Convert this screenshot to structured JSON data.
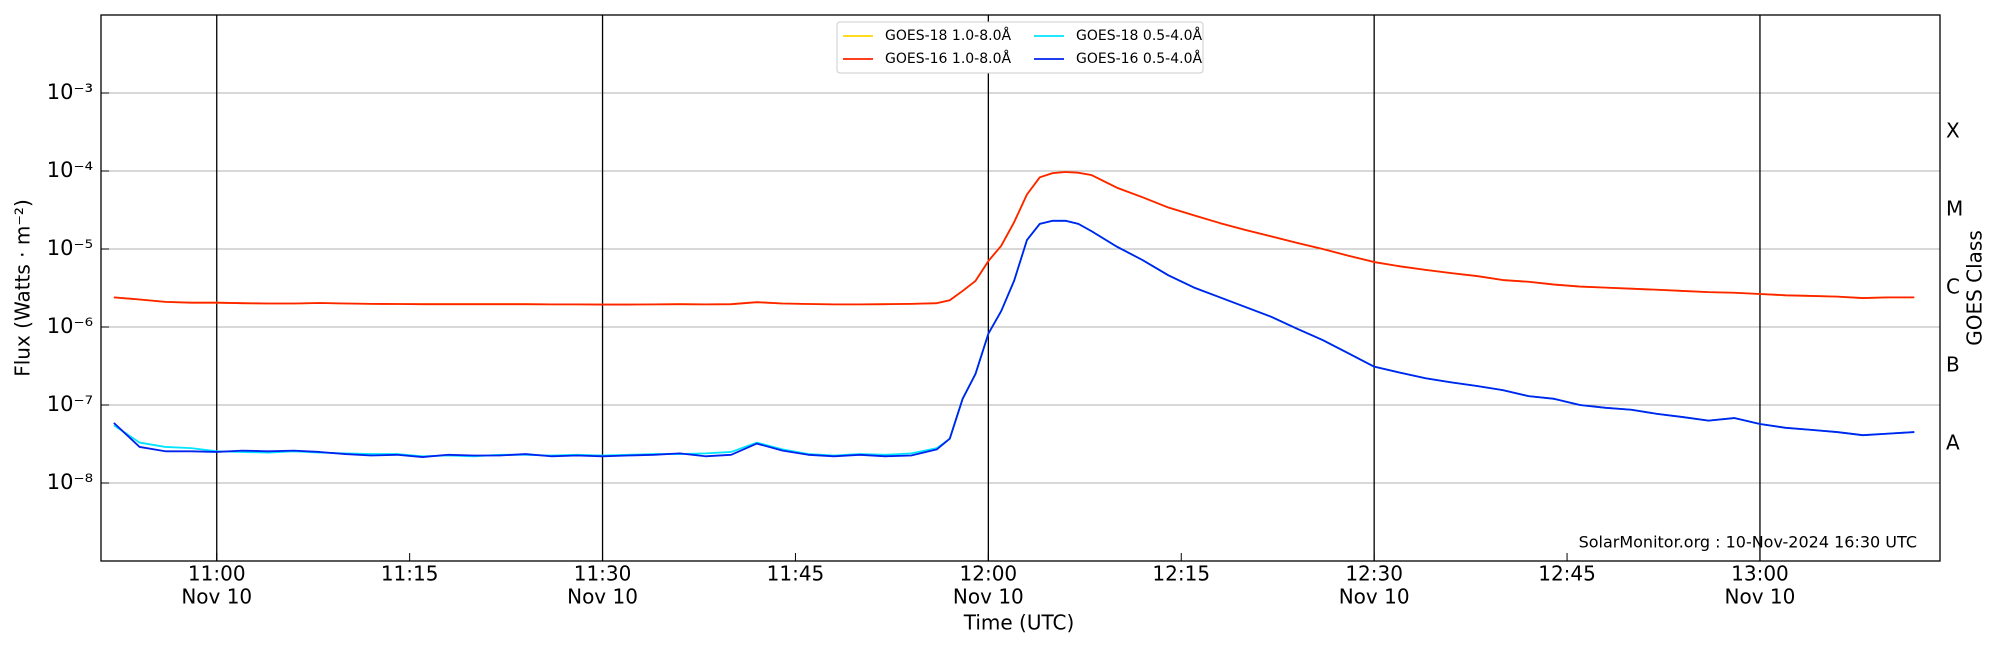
{
  "chart_data": {
    "type": "line",
    "y_label": "Flux (Watts · m⁻²)",
    "x_label": "Time (UTC)",
    "y2_label": "GOES Class",
    "annotation": "SolarMonitor.org : 10-Nov-2024 16:30 UTC",
    "log_y": true,
    "grid": true,
    "legend": "upper center",
    "x": [
      "10:52",
      "10:54",
      "10:56",
      "10:58",
      "11:00",
      "11:02",
      "11:04",
      "11:06",
      "11:08",
      "11:10",
      "11:12",
      "11:14",
      "11:16",
      "11:18",
      "11:20",
      "11:22",
      "11:24",
      "11:26",
      "11:28",
      "11:30",
      "11:32",
      "11:34",
      "11:36",
      "11:38",
      "11:40",
      "11:42",
      "11:44",
      "11:46",
      "11:48",
      "11:50",
      "11:52",
      "11:54",
      "11:56",
      "11:57",
      "11:58",
      "11:59",
      "12:00",
      "12:01",
      "12:02",
      "12:03",
      "12:04",
      "12:05",
      "12:06",
      "12:07",
      "12:08",
      "12:10",
      "12:12",
      "12:14",
      "12:16",
      "12:18",
      "12:20",
      "12:22",
      "12:24",
      "12:26",
      "12:28",
      "12:30",
      "12:32",
      "12:34",
      "12:36",
      "12:38",
      "12:40",
      "12:42",
      "12:44",
      "12:46",
      "12:48",
      "12:50",
      "12:52",
      "12:54",
      "12:56",
      "12:58",
      "13:00",
      "13:02",
      "13:04",
      "13:06",
      "13:08",
      "13:10",
      "13:12"
    ],
    "series": [
      {
        "name": "GOES-18 1.0-8.0Å",
        "color": "#ffd700",
        "values": [
          2.4e-06,
          2.25e-06,
          2.1e-06,
          2.05e-06,
          2.05e-06,
          2.02e-06,
          2e-06,
          2e-06,
          2.03e-06,
          2e-06,
          1.98e-06,
          1.97e-06,
          1.96e-06,
          1.96e-06,
          1.96e-06,
          1.96e-06,
          1.96e-06,
          1.95e-06,
          1.95e-06,
          1.94e-06,
          1.94e-06,
          1.95e-06,
          1.96e-06,
          1.95e-06,
          1.96e-06,
          2.08e-06,
          2e-06,
          1.97e-06,
          1.95e-06,
          1.95e-06,
          1.96e-06,
          1.98e-06,
          2.02e-06,
          2.2e-06,
          2.9e-06,
          3.9e-06,
          7e-06,
          1.1e-05,
          2.2e-05,
          5e-05,
          8.3e-05,
          9.4e-05,
          9.7e-05,
          9.5e-05,
          8.9e-05,
          6.1e-05,
          4.6e-05,
          3.4e-05,
          2.7e-05,
          2.15e-05,
          1.75e-05,
          1.45e-05,
          1.2e-05,
          1e-05,
          8.2e-06,
          6.8e-06,
          6e-06,
          5.4e-06,
          4.9e-06,
          4.5e-06,
          4e-06,
          3.8e-06,
          3.5e-06,
          3.3e-06,
          3.2e-06,
          3.1e-06,
          3e-06,
          2.9e-06,
          2.8e-06,
          2.75e-06,
          2.65e-06,
          2.55e-06,
          2.5e-06,
          2.45e-06,
          2.35e-06,
          2.4e-06,
          2.4e-06
        ]
      },
      {
        "name": "GOES-16 1.0-8.0Å",
        "color": "#ff2200",
        "values": [
          2.4e-06,
          2.25e-06,
          2.1e-06,
          2.05e-06,
          2.05e-06,
          2.02e-06,
          2e-06,
          2e-06,
          2.03e-06,
          2e-06,
          1.98e-06,
          1.97e-06,
          1.96e-06,
          1.96e-06,
          1.96e-06,
          1.96e-06,
          1.96e-06,
          1.95e-06,
          1.95e-06,
          1.94e-06,
          1.94e-06,
          1.95e-06,
          1.96e-06,
          1.95e-06,
          1.96e-06,
          2.08e-06,
          2e-06,
          1.97e-06,
          1.95e-06,
          1.95e-06,
          1.96e-06,
          1.98e-06,
          2.02e-06,
          2.2e-06,
          2.9e-06,
          3.9e-06,
          7e-06,
          1.1e-05,
          2.2e-05,
          5e-05,
          8.3e-05,
          9.4e-05,
          9.7e-05,
          9.5e-05,
          8.9e-05,
          6.1e-05,
          4.6e-05,
          3.4e-05,
          2.7e-05,
          2.15e-05,
          1.75e-05,
          1.45e-05,
          1.2e-05,
          1e-05,
          8.2e-06,
          6.8e-06,
          6e-06,
          5.4e-06,
          4.9e-06,
          4.5e-06,
          4e-06,
          3.8e-06,
          3.5e-06,
          3.3e-06,
          3.2e-06,
          3.1e-06,
          3e-06,
          2.9e-06,
          2.8e-06,
          2.75e-06,
          2.65e-06,
          2.55e-06,
          2.5e-06,
          2.45e-06,
          2.35e-06,
          2.4e-06,
          2.4e-06
        ]
      },
      {
        "name": "GOES-18 0.5-4.0Å",
        "color": "#00e5ff",
        "values": [
          5.5e-08,
          3.3e-08,
          2.9e-08,
          2.8e-08,
          2.55e-08,
          2.5e-08,
          2.45e-08,
          2.55e-08,
          2.45e-08,
          2.4e-08,
          2.35e-08,
          2.35e-08,
          2.2e-08,
          2.25e-08,
          2.2e-08,
          2.3e-08,
          2.3e-08,
          2.25e-08,
          2.3e-08,
          2.25e-08,
          2.3e-08,
          2.35e-08,
          2.35e-08,
          2.4e-08,
          2.5e-08,
          3.3e-08,
          2.7e-08,
          2.35e-08,
          2.25e-08,
          2.35e-08,
          2.3e-08,
          2.4e-08,
          2.8e-08,
          3.7e-08,
          1.2e-07,
          2.5e-07,
          8.2e-07,
          1.6e-06,
          3.9e-06,
          1.3e-05,
          2.1e-05,
          2.3e-05,
          2.3e-05,
          2.1e-05,
          1.7e-05,
          1.07e-05,
          7.2e-06,
          4.6e-06,
          3.2e-06,
          2.4e-06,
          1.8e-06,
          1.35e-06,
          9.5e-07,
          6.8e-07,
          4.6e-07,
          3.1e-07,
          2.6e-07,
          2.2e-07,
          1.95e-07,
          1.75e-07,
          1.55e-07,
          1.3e-07,
          1.2e-07,
          1e-07,
          9.2e-08,
          8.7e-08,
          7.7e-08,
          7e-08,
          6.3e-08,
          6.8e-08,
          5.7e-08,
          5.1e-08,
          4.8e-08,
          4.5e-08,
          4.1e-08,
          4.3e-08,
          4.5e-08
        ]
      },
      {
        "name": "GOES-16 0.5-4.0Å",
        "color": "#0022ee",
        "values": [
          5.9e-08,
          2.9e-08,
          2.55e-08,
          2.55e-08,
          2.5e-08,
          2.6e-08,
          2.55e-08,
          2.6e-08,
          2.5e-08,
          2.35e-08,
          2.25e-08,
          2.3e-08,
          2.15e-08,
          2.3e-08,
          2.25e-08,
          2.25e-08,
          2.35e-08,
          2.2e-08,
          2.25e-08,
          2.2e-08,
          2.25e-08,
          2.3e-08,
          2.4e-08,
          2.2e-08,
          2.3e-08,
          3.2e-08,
          2.6e-08,
          2.3e-08,
          2.2e-08,
          2.3e-08,
          2.2e-08,
          2.25e-08,
          2.7e-08,
          3.7e-08,
          1.2e-07,
          2.5e-07,
          8.2e-07,
          1.6e-06,
          3.9e-06,
          1.3e-05,
          2.1e-05,
          2.3e-05,
          2.3e-05,
          2.1e-05,
          1.7e-05,
          1.07e-05,
          7.2e-06,
          4.6e-06,
          3.2e-06,
          2.4e-06,
          1.8e-06,
          1.35e-06,
          9.5e-07,
          6.8e-07,
          4.6e-07,
          3.1e-07,
          2.6e-07,
          2.2e-07,
          1.95e-07,
          1.75e-07,
          1.55e-07,
          1.3e-07,
          1.2e-07,
          1e-07,
          9.2e-08,
          8.7e-08,
          7.7e-08,
          7e-08,
          6.3e-08,
          6.8e-08,
          5.7e-08,
          5.1e-08,
          4.8e-08,
          4.5e-08,
          4.1e-08,
          4.3e-08,
          4.5e-08
        ]
      }
    ],
    "xlim": [
      "10:51",
      "13:14"
    ],
    "xticks": [
      {
        "value": "11:00",
        "label": "11:00",
        "sublabel": "Nov 10"
      },
      {
        "value": "11:15",
        "label": "11:15"
      },
      {
        "value": "11:30",
        "label": "11:30",
        "sublabel": "Nov 10"
      },
      {
        "value": "11:45",
        "label": "11:45"
      },
      {
        "value": "12:00",
        "label": "12:00",
        "sublabel": "Nov 10"
      },
      {
        "value": "12:15",
        "label": "12:15"
      },
      {
        "value": "12:30",
        "label": "12:30",
        "sublabel": "Nov 10"
      },
      {
        "value": "12:45",
        "label": "12:45"
      },
      {
        "value": "13:00",
        "label": "13:00",
        "sublabel": "Nov 10"
      }
    ],
    "ylim": [
      1e-09,
      0.01
    ],
    "yticks": [
      {
        "value": 1e-08,
        "label": "10⁻⁸"
      },
      {
        "value": 1e-07,
        "label": "10⁻⁷"
      },
      {
        "value": 1e-06,
        "label": "10⁻⁶"
      },
      {
        "value": 1e-05,
        "label": "10⁻⁵"
      },
      {
        "value": 0.0001,
        "label": "10⁻⁴"
      },
      {
        "value": 0.001,
        "label": "10⁻³"
      }
    ],
    "y2ticks": [
      {
        "value": 0.0001,
        "label": "X"
      },
      {
        "value": 1e-05,
        "label": "M"
      },
      {
        "value": 1e-06,
        "label": "C"
      },
      {
        "value": 1e-07,
        "label": "B"
      },
      {
        "value": 1e-08,
        "label": "A"
      }
    ]
  }
}
